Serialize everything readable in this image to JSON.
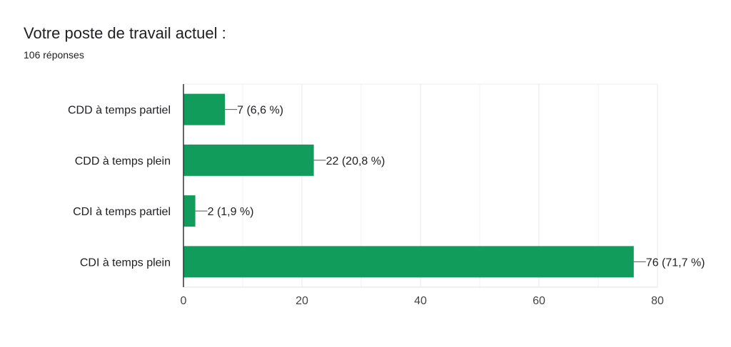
{
  "header": {
    "title": "Votre poste de travail actuel :",
    "subtitle": "106 réponses"
  },
  "chart_data": {
    "type": "bar",
    "orientation": "horizontal",
    "categories": [
      "CDD à temps partiel",
      "CDD à temps plein",
      "CDI à temps partiel",
      "CDI à temps plein"
    ],
    "values": [
      7,
      22,
      2,
      76
    ],
    "value_labels": [
      "7 (6,6 %)",
      "22 (20,8 %)",
      "2 (1,9 %)",
      "76 (71,7 %)"
    ],
    "x_ticks": [
      0,
      20,
      40,
      60,
      80
    ],
    "xlim": [
      0,
      80
    ],
    "grid": true,
    "legend": "none",
    "bar_color": "#129c5b",
    "grid_color": "#e8e8e8",
    "axis_color": "#333333"
  }
}
